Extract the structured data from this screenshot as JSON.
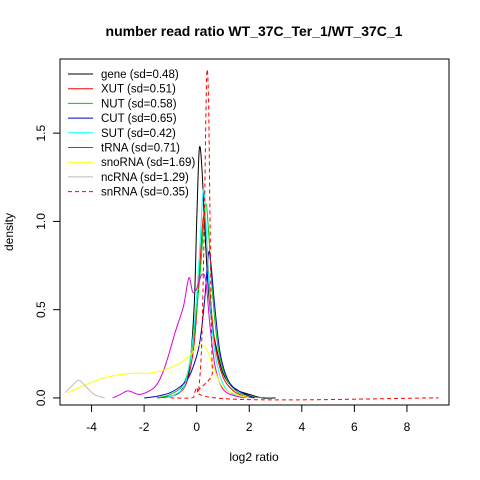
{
  "chart_data": {
    "type": "line",
    "title": "number read ratio WT_37C_Ter_1/WT_37C_1",
    "xlabel": "log2 ratio",
    "ylabel": "density",
    "xlim": [
      -5.2,
      9.6
    ],
    "ylim": [
      -0.04,
      1.92
    ],
    "xticks": [
      -4,
      -2,
      0,
      2,
      4,
      6,
      8
    ],
    "yticks": [
      0.0,
      0.5,
      1.0,
      1.5
    ],
    "ytick_labels": [
      "0.0",
      "0.5",
      "1.0",
      "1.5"
    ],
    "grid": false,
    "legend_position": "top-left",
    "series": [
      {
        "name": "gene (sd=0.48)",
        "color": "#000000",
        "dash": false,
        "points": [
          [
            -1.5,
            0.0
          ],
          [
            -1.0,
            0.01
          ],
          [
            -0.6,
            0.04
          ],
          [
            -0.3,
            0.15
          ],
          [
            -0.1,
            0.5
          ],
          [
            0.0,
            1.0
          ],
          [
            0.1,
            1.41
          ],
          [
            0.2,
            1.3
          ],
          [
            0.3,
            0.98
          ],
          [
            0.45,
            0.6
          ],
          [
            0.6,
            0.4
          ],
          [
            0.8,
            0.25
          ],
          [
            1.0,
            0.14
          ],
          [
            1.3,
            0.07
          ],
          [
            1.6,
            0.04
          ],
          [
            2.0,
            0.02
          ],
          [
            2.5,
            0.0
          ],
          [
            3.0,
            0.0
          ]
        ]
      },
      {
        "name": "XUT (sd=0.51)",
        "color": "#ff0000",
        "dash": false,
        "points": [
          [
            -1.2,
            0.0
          ],
          [
            -0.8,
            0.02
          ],
          [
            -0.4,
            0.08
          ],
          [
            -0.1,
            0.3
          ],
          [
            0.1,
            0.7
          ],
          [
            0.25,
            1.02
          ],
          [
            0.35,
            0.95
          ],
          [
            0.5,
            0.6
          ],
          [
            0.7,
            0.3
          ],
          [
            1.0,
            0.12
          ],
          [
            1.4,
            0.04
          ],
          [
            1.8,
            0.01
          ],
          [
            2.2,
            0.0
          ]
        ]
      },
      {
        "name": "NUT (sd=0.58)",
        "color": "#00cc00",
        "dash": false,
        "points": [
          [
            -1.5,
            0.0
          ],
          [
            -1.0,
            0.02
          ],
          [
            -0.5,
            0.08
          ],
          [
            -0.2,
            0.25
          ],
          [
            0.1,
            0.65
          ],
          [
            0.25,
            0.95
          ],
          [
            0.35,
            1.1
          ],
          [
            0.45,
            0.95
          ],
          [
            0.6,
            0.6
          ],
          [
            0.8,
            0.3
          ],
          [
            1.1,
            0.12
          ],
          [
            1.5,
            0.04
          ],
          [
            2.0,
            0.01
          ],
          [
            2.5,
            0.0
          ]
        ]
      },
      {
        "name": "CUT (sd=0.65)",
        "color": "#0000cc",
        "dash": false,
        "points": [
          [
            -2.0,
            0.0
          ],
          [
            -1.5,
            0.01
          ],
          [
            -1.0,
            0.03
          ],
          [
            -0.5,
            0.08
          ],
          [
            -0.2,
            0.15
          ],
          [
            0.1,
            0.3
          ],
          [
            0.3,
            0.55
          ],
          [
            0.45,
            0.82
          ],
          [
            0.55,
            0.75
          ],
          [
            0.7,
            0.5
          ],
          [
            0.9,
            0.25
          ],
          [
            1.2,
            0.1
          ],
          [
            1.6,
            0.04
          ],
          [
            2.2,
            0.0
          ]
        ]
      },
      {
        "name": "SUT (sd=0.42)",
        "color": "#00ffff",
        "dash": false,
        "points": [
          [
            -1.2,
            0.0
          ],
          [
            -0.7,
            0.03
          ],
          [
            -0.4,
            0.1
          ],
          [
            -0.1,
            0.4
          ],
          [
            0.1,
            0.8
          ],
          [
            0.25,
            1.18
          ],
          [
            0.35,
            1.0
          ],
          [
            0.5,
            0.55
          ],
          [
            0.7,
            0.25
          ],
          [
            1.0,
            0.08
          ],
          [
            1.4,
            0.02
          ],
          [
            1.8,
            0.0
          ]
        ]
      },
      {
        "name": "tRNA (sd=0.71)",
        "color": "#dd00dd",
        "dash": false,
        "points": [
          [
            -3.2,
            0.0
          ],
          [
            -2.9,
            0.02
          ],
          [
            -2.6,
            0.04
          ],
          [
            -2.2,
            0.02
          ],
          [
            -1.8,
            0.04
          ],
          [
            -1.5,
            0.08
          ],
          [
            -1.2,
            0.18
          ],
          [
            -0.8,
            0.38
          ],
          [
            -0.5,
            0.52
          ],
          [
            -0.3,
            0.68
          ],
          [
            -0.15,
            0.6
          ],
          [
            0.0,
            0.62
          ],
          [
            0.2,
            0.7
          ],
          [
            0.35,
            0.66
          ],
          [
            0.5,
            0.42
          ],
          [
            0.7,
            0.18
          ],
          [
            1.0,
            0.05
          ],
          [
            1.5,
            0.01
          ],
          [
            2.0,
            0.0
          ]
        ]
      },
      {
        "name": "snoRNA (sd=1.69)",
        "color": "#ffff00",
        "dash": false,
        "points": [
          [
            -4.9,
            0.03
          ],
          [
            -4.3,
            0.07
          ],
          [
            -3.6,
            0.11
          ],
          [
            -3.0,
            0.13
          ],
          [
            -2.4,
            0.14
          ],
          [
            -1.8,
            0.14
          ],
          [
            -1.2,
            0.16
          ],
          [
            -0.6,
            0.2
          ],
          [
            -0.2,
            0.25
          ],
          [
            0.1,
            0.3
          ],
          [
            0.4,
            0.27
          ],
          [
            0.7,
            0.15
          ],
          [
            1.0,
            0.06
          ],
          [
            1.5,
            0.02
          ],
          [
            2.0,
            0.0
          ]
        ]
      },
      {
        "name": "ncRNA (sd=1.29)",
        "color": "#bbbbbb",
        "dash": false,
        "points": [
          [
            -5.0,
            0.03
          ],
          [
            -4.8,
            0.06
          ],
          [
            -4.6,
            0.09
          ],
          [
            -4.45,
            0.1
          ],
          [
            -4.25,
            0.07
          ],
          [
            -3.9,
            0.02
          ],
          [
            -3.5,
            0.0
          ]
        ]
      },
      {
        "name": "snRNA (sd=0.35)",
        "color": "#ff0000",
        "dash": true,
        "points": [
          [
            -1.0,
            0.0
          ],
          [
            -0.2,
            0.0
          ],
          [
            -0.1,
            0.02
          ],
          [
            0.0,
            0.06
          ],
          [
            0.05,
            0.03
          ],
          [
            0.1,
            0.08
          ],
          [
            0.2,
            0.35
          ],
          [
            0.3,
            1.1
          ],
          [
            0.38,
            1.82
          ],
          [
            0.45,
            1.7
          ],
          [
            0.5,
            1.1
          ],
          [
            0.55,
            0.5
          ],
          [
            0.6,
            0.15
          ],
          [
            0.7,
            0.0
          ],
          [
            9.2,
            0.0
          ]
        ]
      }
    ]
  }
}
